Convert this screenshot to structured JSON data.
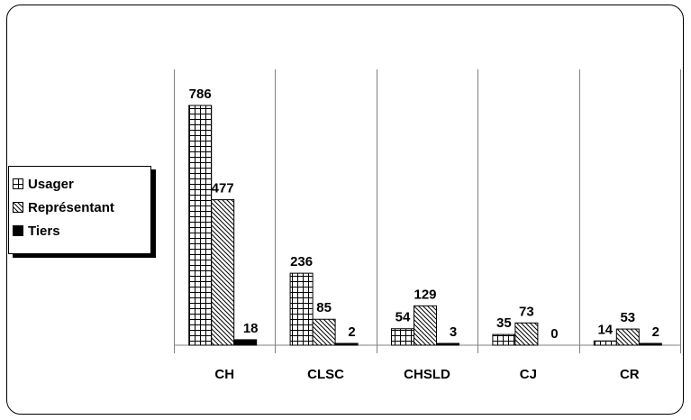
{
  "chart_data": {
    "type": "bar",
    "categories": [
      "CH",
      "CLSC",
      "CHSLD",
      "CJ",
      "CR"
    ],
    "series": [
      {
        "name": "Usager",
        "values": [
          786,
          236,
          54,
          35,
          14
        ],
        "pattern": "grid"
      },
      {
        "name": "Représentant",
        "values": [
          477,
          85,
          129,
          73,
          53
        ],
        "pattern": "diagonal"
      },
      {
        "name": "Tiers",
        "values": [
          18,
          2,
          3,
          0,
          2
        ],
        "pattern": "solid"
      }
    ],
    "ylim": [
      0,
      800
    ],
    "grid": "vertical category separators",
    "legend_position": "left",
    "colors": {
      "bar_line": "#000000",
      "fill": "#ffffff",
      "grid": "#808080"
    }
  }
}
